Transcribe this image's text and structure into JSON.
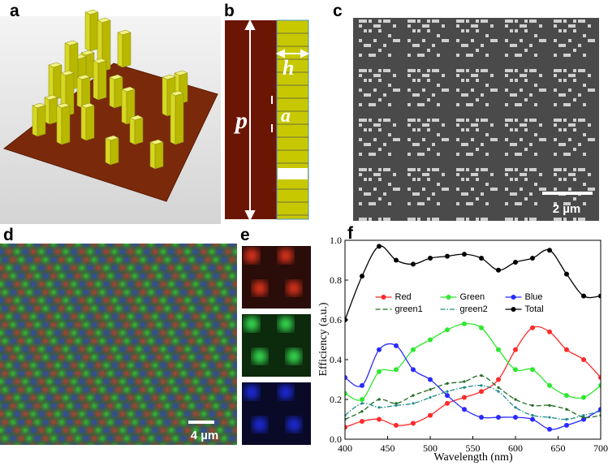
{
  "panel_labels": [
    "a",
    "b",
    "c",
    "d",
    "e",
    "f"
  ],
  "schematic": {
    "period": "p",
    "height": "h",
    "gap": "a"
  },
  "scale_bars": [
    "2 µm",
    "4 µm"
  ],
  "chart_data": {
    "type": "line",
    "xlabel": "Wavelength (nm)",
    "ylabel": "Efficiency (a.u.)",
    "xlim": [
      400,
      700
    ],
    "xticks": [
      400,
      450,
      500,
      550,
      600,
      650,
      700
    ],
    "ylim": [
      0,
      1
    ],
    "yticks": [
      {
        "value": 0,
        "label": "0.0"
      },
      0.2,
      0.4,
      0.6,
      0.8,
      {
        "value": 1,
        "label": "1.0"
      }
    ],
    "legend": "upper center",
    "x": [
      400,
      420,
      440,
      460,
      480,
      500,
      520,
      540,
      560,
      580,
      600,
      620,
      640,
      660,
      680,
      700
    ],
    "series": [
      {
        "name": "Red",
        "color": "#ff2a2a",
        "dash": "solid",
        "values": [
          0.06,
          0.09,
          0.1,
          0.07,
          0.08,
          0.12,
          0.18,
          0.21,
          0.24,
          0.3,
          0.45,
          0.56,
          0.54,
          0.45,
          0.4,
          0.31
        ]
      },
      {
        "name": "Green",
        "color": "#2ee82e",
        "dash": "solid",
        "values": [
          0.23,
          0.2,
          0.34,
          0.35,
          0.45,
          0.5,
          0.55,
          0.58,
          0.56,
          0.45,
          0.35,
          0.35,
          0.27,
          0.22,
          0.21,
          0.27
        ]
      },
      {
        "name": "Blue",
        "color": "#2a2aff",
        "dash": "solid",
        "values": [
          0.31,
          0.27,
          0.45,
          0.47,
          0.35,
          0.3,
          0.22,
          0.15,
          0.11,
          0.11,
          0.11,
          0.1,
          0.05,
          0.07,
          0.1,
          0.15
        ]
      },
      {
        "name": "green1",
        "color": "#1e6b1e",
        "dash": "dashed",
        "values": [
          0.1,
          0.14,
          0.2,
          0.18,
          0.22,
          0.25,
          0.28,
          0.29,
          0.32,
          0.26,
          0.2,
          0.17,
          0.17,
          0.15,
          0.11,
          0.12
        ]
      },
      {
        "name": "green2",
        "color": "#1f8a8a",
        "dash": "dashdot",
        "values": [
          0.12,
          0.18,
          0.16,
          0.17,
          0.18,
          0.21,
          0.24,
          0.26,
          0.27,
          0.24,
          0.16,
          0.12,
          0.11,
          0.1,
          0.12,
          0.14
        ]
      },
      {
        "name": "Total",
        "color": "#000000",
        "dash": "solid",
        "values": [
          0.6,
          0.82,
          0.97,
          0.9,
          0.88,
          0.91,
          0.92,
          0.93,
          0.91,
          0.85,
          0.89,
          0.91,
          0.95,
          0.83,
          0.72,
          0.72
        ]
      }
    ]
  }
}
